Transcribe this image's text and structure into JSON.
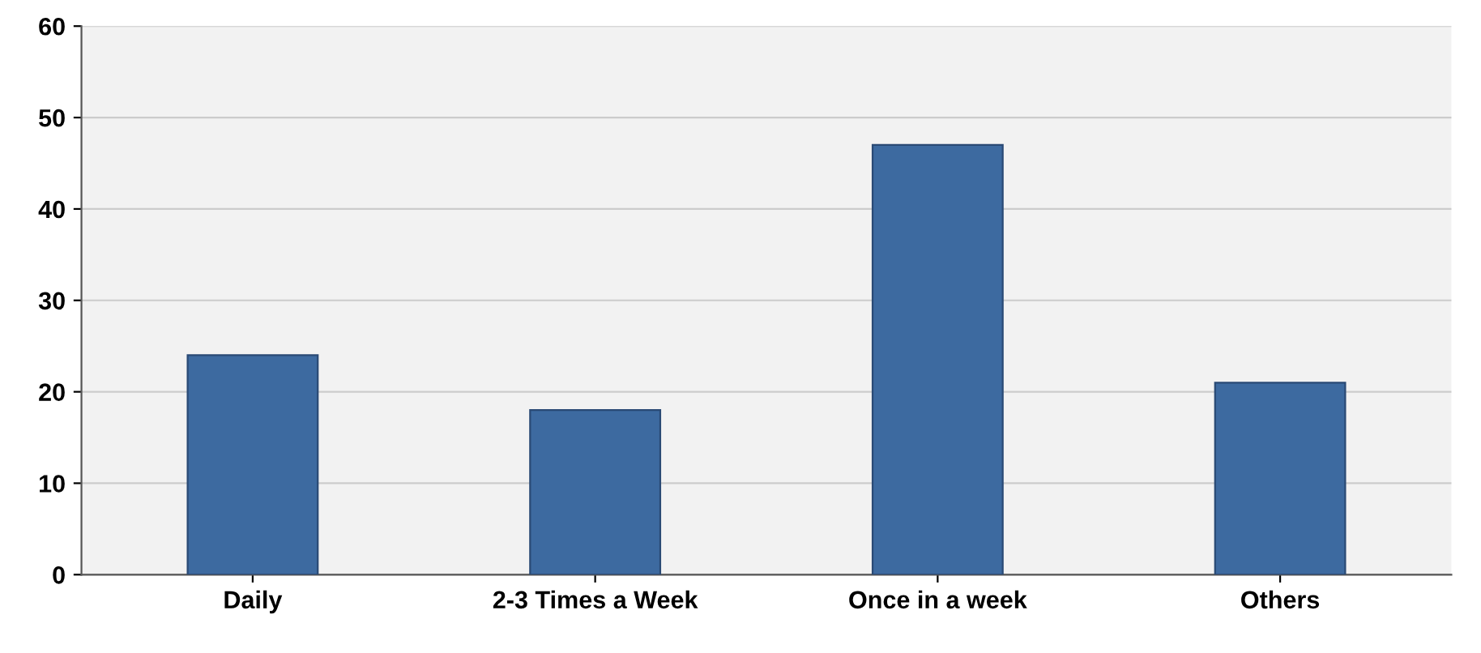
{
  "chart_data": {
    "type": "bar",
    "categories": [
      "Daily",
      "2-3 Times a Week",
      "Once in a week",
      "Others"
    ],
    "values": [
      24,
      18,
      47,
      21
    ],
    "color": "#3d6aa0",
    "ylim": [
      0,
      60
    ],
    "yticks": [
      0,
      10,
      20,
      30,
      40,
      50,
      60
    ],
    "grid": "y"
  }
}
